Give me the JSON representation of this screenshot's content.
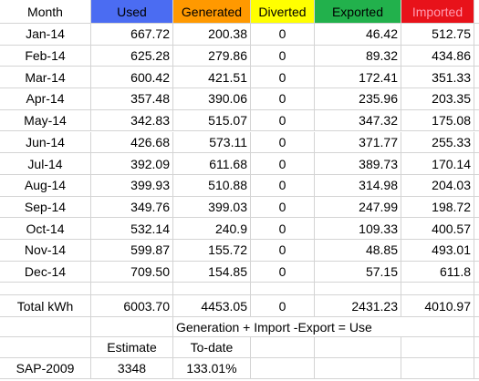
{
  "header": [
    "Month",
    "Used",
    "Generated",
    "Diverted",
    "Exported",
    "Imported"
  ],
  "rows": [
    [
      "Jan-14",
      "667.72",
      "200.38",
      "0",
      "46.42",
      "512.75"
    ],
    [
      "Feb-14",
      "625.28",
      "279.86",
      "0",
      "89.32",
      "434.86"
    ],
    [
      "Mar-14",
      "600.42",
      "421.51",
      "0",
      "172.41",
      "351.33"
    ],
    [
      "Apr-14",
      "357.48",
      "390.06",
      "0",
      "235.96",
      "203.35"
    ],
    [
      "May-14",
      "342.83",
      "515.07",
      "0",
      "347.32",
      "175.08"
    ],
    [
      "Jun-14",
      "426.68",
      "573.11",
      "0",
      "371.77",
      "255.33"
    ],
    [
      "Jul-14",
      "392.09",
      "611.68",
      "0",
      "389.73",
      "170.14"
    ],
    [
      "Aug-14",
      "399.93",
      "510.88",
      "0",
      "314.98",
      "204.03"
    ],
    [
      "Sep-14",
      "349.76",
      "399.03",
      "0",
      "247.99",
      "198.72"
    ],
    [
      "Oct-14",
      "532.14",
      "240.9",
      "0",
      "109.33",
      "400.57"
    ],
    [
      "Nov-14",
      "599.87",
      "155.72",
      "0",
      "48.85",
      "493.01"
    ],
    [
      "Dec-14",
      "709.50",
      "154.85",
      "0",
      "57.15",
      "611.8"
    ]
  ],
  "total": [
    "Total kWh",
    "6003.70",
    "4453.05",
    "0",
    "2431.23",
    "4010.97"
  ],
  "formula": "Generation + Import -Export = Use",
  "estimate_header": [
    "Estimate",
    "To-date"
  ],
  "sap": [
    "SAP-2009",
    "3348",
    "133.01%"
  ]
}
